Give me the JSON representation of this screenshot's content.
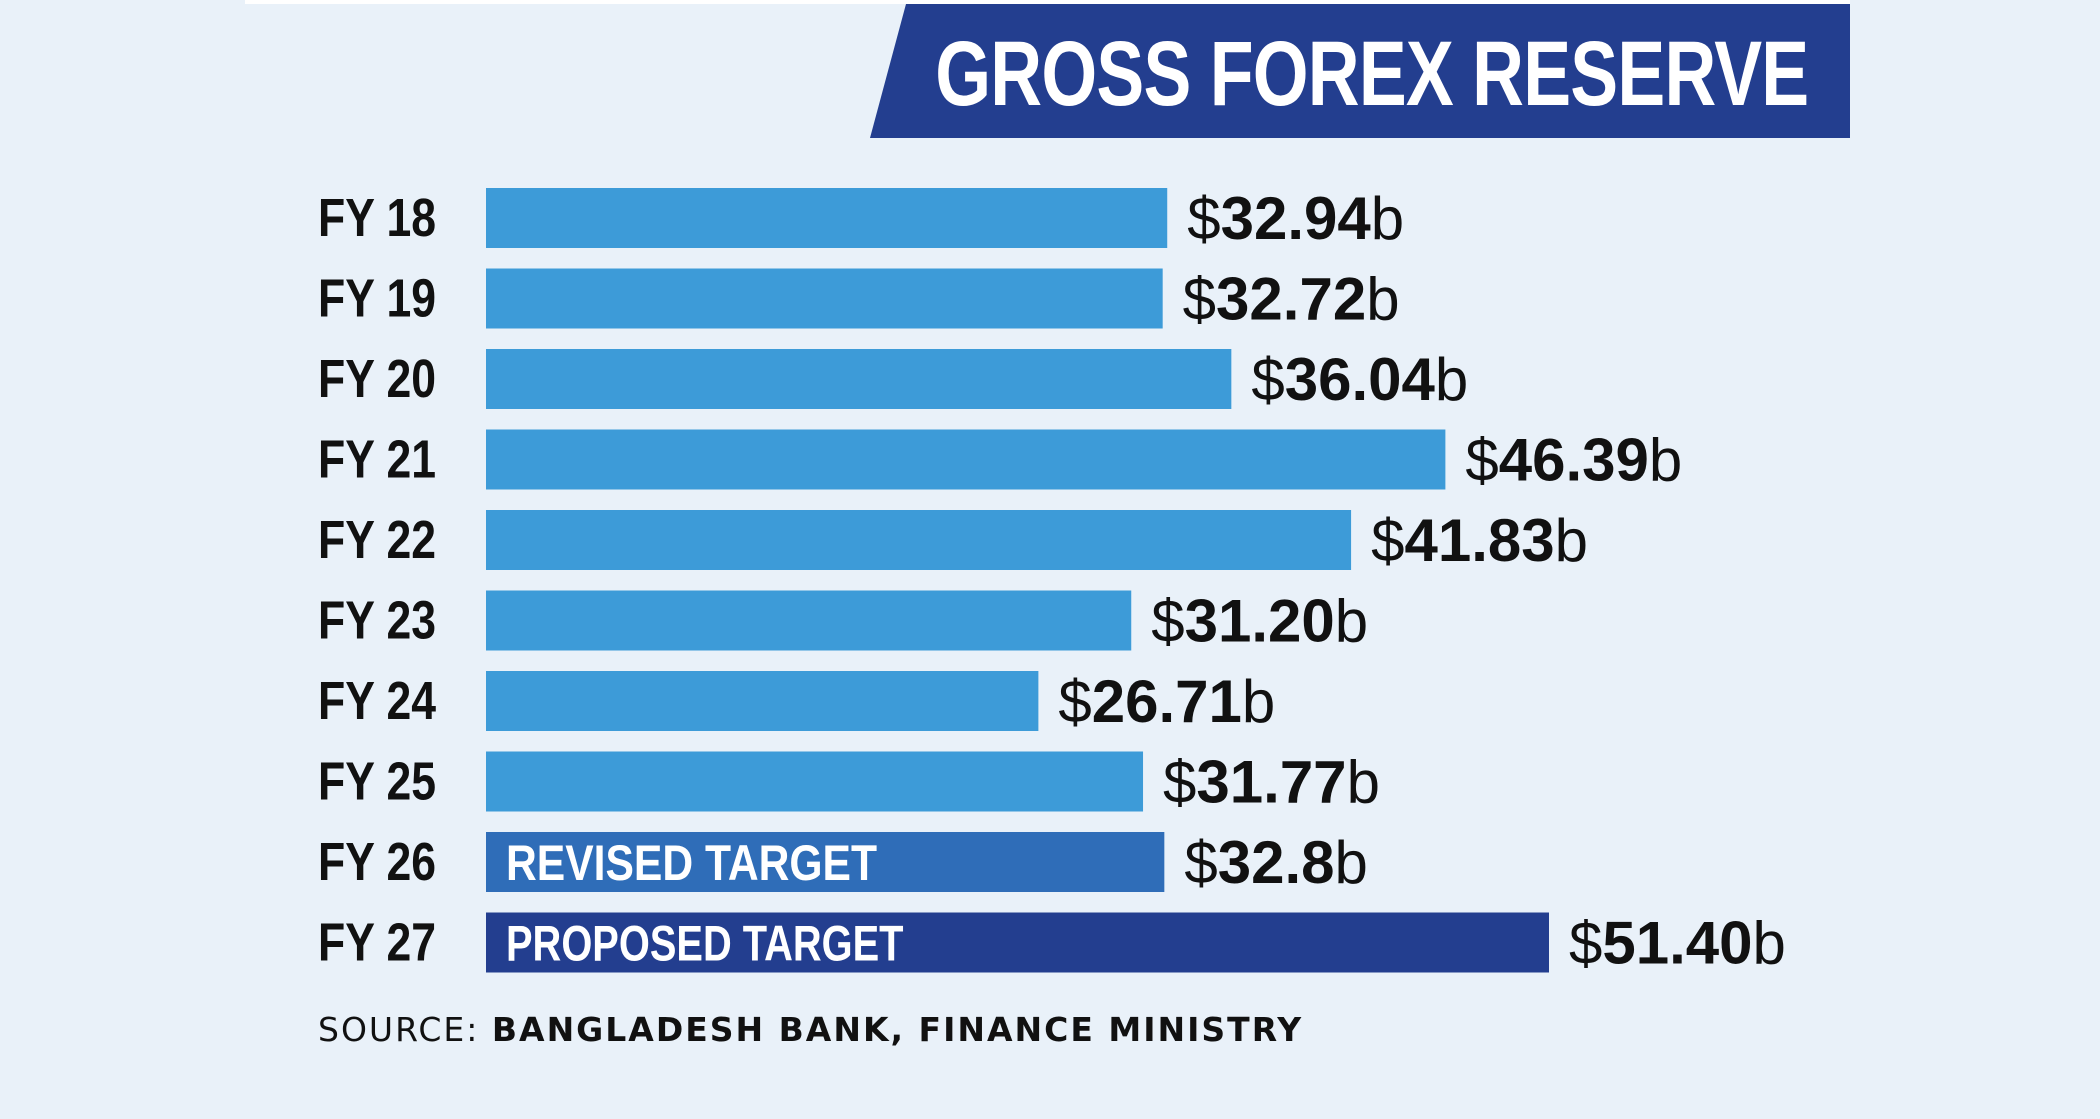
{
  "title": "GROSS FOREX RESERVE",
  "source": {
    "label": "SOURCE:",
    "value": "BANGLADESH BANK, FINANCE MINISTRY"
  },
  "colors": {
    "background": "#e9f1f9",
    "bar": "#3d9bd8",
    "revised_bar": "#2f6db8",
    "proposed_bar": "#233e8f",
    "title_banner": "#233e8f",
    "text": "#111111"
  },
  "chart_data": {
    "type": "bar",
    "orientation": "horizontal",
    "categories": [
      "FY 18",
      "FY 19",
      "FY 20",
      "FY 21",
      "FY 22",
      "FY 23",
      "FY 24",
      "FY 25",
      "FY 26",
      "FY 27"
    ],
    "values": [
      32.94,
      32.72,
      36.04,
      46.39,
      41.83,
      31.2,
      26.71,
      31.77,
      32.8,
      51.4
    ],
    "value_labels": [
      {
        "prefix": "$",
        "number": "32.94",
        "suffix": "b"
      },
      {
        "prefix": "$",
        "number": "32.72",
        "suffix": "b"
      },
      {
        "prefix": "$",
        "number": "36.04",
        "suffix": "b"
      },
      {
        "prefix": "$",
        "number": "46.39",
        "suffix": "b"
      },
      {
        "prefix": "$",
        "number": "41.83",
        "suffix": "b"
      },
      {
        "prefix": "$",
        "number": "31.20",
        "suffix": "b"
      },
      {
        "prefix": "$",
        "number": "26.71",
        "suffix": "b"
      },
      {
        "prefix": "$",
        "number": "31.77",
        "suffix": "b"
      },
      {
        "prefix": "$",
        "number": "32.8",
        "suffix": "b"
      },
      {
        "prefix": "$",
        "number": "51.40",
        "suffix": "b"
      }
    ],
    "bar_annotations": [
      "",
      "",
      "",
      "",
      "",
      "",
      "",
      "",
      "REVISED TARGET",
      "PROPOSED TARGET"
    ],
    "bar_styles": [
      "actual",
      "actual",
      "actual",
      "actual",
      "actual",
      "actual",
      "actual",
      "actual",
      "revised",
      "proposed"
    ],
    "xlim": [
      0,
      51.4
    ],
    "grid": false,
    "legend": "none"
  }
}
